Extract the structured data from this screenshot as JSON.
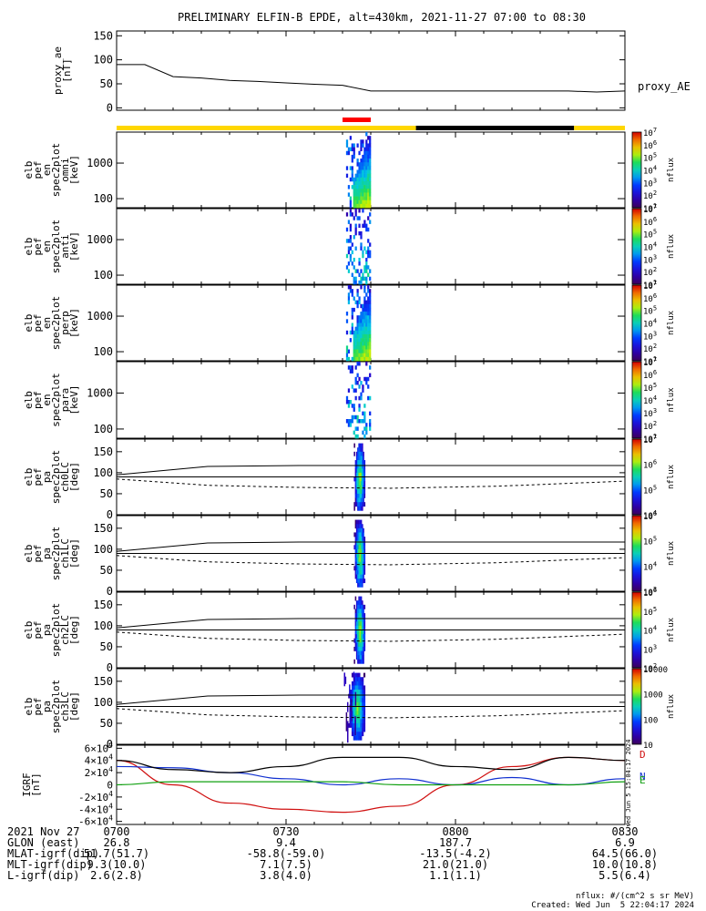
{
  "title": "PRELIMINARY ELFIN-B EPDE, alt=430km, 2021-11-27 07:00 to 08:30",
  "time_range": [
    "07:00",
    "08:30"
  ],
  "chart_data": [
    {
      "type": "line",
      "panel": "proxy_ae",
      "ylabel": "proxy_ae\n[nT]",
      "legend": "proxy_AE",
      "yticks": [
        "0",
        "50",
        "100",
        "150"
      ],
      "ylim": [
        -5,
        160
      ],
      "series": [
        {
          "name": "proxy_AE",
          "x": [
            "07:00",
            "07:05",
            "07:10",
            "07:15",
            "07:20",
            "07:25",
            "07:30",
            "07:35",
            "07:40",
            "07:45",
            "07:50",
            "07:55",
            "08:00",
            "08:05",
            "08:10",
            "08:15",
            "08:20",
            "08:25",
            "08:30"
          ],
          "values": [
            90,
            90,
            65,
            62,
            57,
            55,
            52,
            49,
            47,
            35,
            35,
            35,
            35,
            35,
            35,
            35,
            35,
            33,
            35
          ]
        }
      ]
    },
    {
      "type": "bar",
      "panel": "region_bar",
      "segments": [
        {
          "start": "07:00",
          "end": "07:40",
          "color": "#FFD700"
        },
        {
          "start": "07:40",
          "end": "07:45",
          "color": "#FF0000",
          "elevated": true
        },
        {
          "start": "07:45",
          "end": "07:53",
          "color": "#FFD700"
        },
        {
          "start": "07:53",
          "end": "08:21",
          "color": "#000000"
        },
        {
          "start": "08:21",
          "end": "08:30",
          "color": "#FFD700"
        }
      ]
    },
    {
      "type": "heatmap",
      "panel": "en_omni",
      "ylabel": "elb\npef\nen\nspec2plot\nomni\n[keV]",
      "ylog": true,
      "yticks": [
        "100",
        "1000"
      ],
      "x_range": [
        "07:40",
        "07:45"
      ],
      "colorbar": {
        "label": "nflux",
        "ticks": [
          "10^1",
          "10^2",
          "10^3",
          "10^4",
          "10^5",
          "10^6",
          "10^7"
        ]
      }
    },
    {
      "type": "heatmap",
      "panel": "en_anti",
      "ylabel": "elb\npef\nen\nspec2plot\nanti\n[keV]",
      "ylog": true,
      "yticks": [
        "100",
        "1000"
      ],
      "x_range": [
        "07:40",
        "07:45"
      ],
      "colorbar": {
        "label": "nflux",
        "ticks": [
          "10^1",
          "10^2",
          "10^3",
          "10^4",
          "10^5",
          "10^6",
          "10^7"
        ]
      }
    },
    {
      "type": "heatmap",
      "panel": "en_perp",
      "ylabel": "elb\npef\nen\nspec2plot\nperp\n[keV]",
      "ylog": true,
      "yticks": [
        "100",
        "1000"
      ],
      "x_range": [
        "07:40",
        "07:45"
      ],
      "colorbar": {
        "label": "nflux",
        "ticks": [
          "10^1",
          "10^2",
          "10^3",
          "10^4",
          "10^5",
          "10^6",
          "10^7"
        ]
      }
    },
    {
      "type": "heatmap",
      "panel": "en_para",
      "ylabel": "elb\npef\nen\nspec2plot\npara\n[keV]",
      "ylog": true,
      "yticks": [
        "100",
        "1000"
      ],
      "x_range": [
        "07:40",
        "07:45"
      ],
      "colorbar": {
        "label": "nflux",
        "ticks": [
          "10^1",
          "10^2",
          "10^3",
          "10^4",
          "10^5",
          "10^6",
          "10^7"
        ]
      }
    },
    {
      "type": "heatmap",
      "panel": "pa_ch0",
      "ylabel": "elb\npef\npa\nspec2plot\nch0LC\n[deg]",
      "yticks": [
        "0",
        "50",
        "100",
        "150"
      ],
      "ylim": [
        0,
        180
      ],
      "x_range": [
        "07:42",
        "07:44"
      ],
      "lines": {
        "solid_upper": [
          95,
          115,
          117,
          117,
          117,
          117
        ],
        "solid_90": 90,
        "dashed_lower": [
          85,
          70,
          65,
          63,
          68,
          80
        ]
      },
      "colorbar": {
        "label": "nflux",
        "ticks": [
          "10^4",
          "10^5",
          "10^6",
          "10^7"
        ]
      }
    },
    {
      "type": "heatmap",
      "panel": "pa_ch1",
      "ylabel": "elb\npef\npa\nspec2plot\nch1LC\n[deg]",
      "yticks": [
        "0",
        "50",
        "100",
        "150"
      ],
      "ylim": [
        0,
        180
      ],
      "x_range": [
        "07:42",
        "07:44"
      ],
      "lines": {
        "solid_upper": [
          95,
          115,
          117,
          117,
          117,
          117
        ],
        "solid_90": 90,
        "dashed_lower": [
          85,
          70,
          65,
          63,
          68,
          80
        ]
      },
      "colorbar": {
        "label": "nflux",
        "ticks": [
          "10^3",
          "10^4",
          "10^5",
          "10^6"
        ]
      }
    },
    {
      "type": "heatmap",
      "panel": "pa_ch2",
      "ylabel": "elb\npef\npa\nspec2plot\nch2LC\n[deg]",
      "yticks": [
        "0",
        "50",
        "100",
        "150"
      ],
      "ylim": [
        0,
        180
      ],
      "x_range": [
        "07:42",
        "07:44"
      ],
      "lines": {
        "solid_upper": [
          95,
          115,
          117,
          117,
          117,
          117
        ],
        "solid_90": 90,
        "dashed_lower": [
          85,
          70,
          65,
          63,
          68,
          80
        ]
      },
      "colorbar": {
        "label": "nflux",
        "ticks": [
          "10^2",
          "10^3",
          "10^4",
          "10^5",
          "10^6"
        ]
      }
    },
    {
      "type": "heatmap",
      "panel": "pa_ch3",
      "ylabel": "elb\npef\npa\nspec2plot\nch3LC\n[deg]",
      "yticks": [
        "0",
        "50",
        "100",
        "150"
      ],
      "ylim": [
        0,
        180
      ],
      "x_range": [
        "07:41",
        "07:44"
      ],
      "lines": {
        "solid_upper": [
          95,
          115,
          117,
          117,
          117,
          117
        ],
        "solid_90": 90,
        "dashed_lower": [
          85,
          70,
          65,
          63,
          68,
          80
        ]
      },
      "colorbar": {
        "label": "nflux",
        "ticks": [
          "10",
          "100",
          "1000",
          "10000"
        ]
      }
    },
    {
      "type": "line",
      "panel": "igrf",
      "ylabel": "IGRF\n[nT]",
      "yticks": [
        "6×10^4",
        "4×10^4",
        "2×10^4",
        "0",
        "-2×10^4",
        "-4×10^4",
        "-6×10^4"
      ],
      "ylim": [
        -65000,
        65000
      ],
      "series": [
        {
          "name": "D",
          "color": "#d01010",
          "x": [
            "07:00",
            "07:10",
            "07:20",
            "07:30",
            "07:40",
            "07:50",
            "08:00",
            "08:10",
            "08:20",
            "08:30"
          ],
          "values": [
            40000,
            0,
            -30000,
            -40000,
            -45000,
            -35000,
            0,
            30000,
            45000,
            40000
          ]
        },
        {
          "name": "N",
          "color": "#1030d0",
          "x": [
            "07:00",
            "07:10",
            "07:20",
            "07:30",
            "07:40",
            "07:50",
            "08:00",
            "08:10",
            "08:20",
            "08:30"
          ],
          "values": [
            30000,
            28000,
            20000,
            10000,
            0,
            10000,
            0,
            12000,
            0,
            10000
          ]
        },
        {
          "name": "E",
          "color": "#10a010",
          "x": [
            "07:00",
            "07:10",
            "07:20",
            "07:30",
            "07:40",
            "07:50",
            "08:00",
            "08:10",
            "08:20",
            "08:30"
          ],
          "values": [
            0,
            5000,
            5000,
            5000,
            5000,
            0,
            0,
            0,
            0,
            5000
          ]
        },
        {
          "name": "total",
          "color": "#000000",
          "x": [
            "07:00",
            "07:10",
            "07:20",
            "07:30",
            "07:40",
            "07:50",
            "08:00",
            "08:10",
            "08:20",
            "08:30"
          ],
          "values": [
            40000,
            25000,
            20000,
            30000,
            45000,
            45000,
            30000,
            25000,
            45000,
            40000
          ]
        }
      ],
      "legend_letters": [
        "D",
        "N",
        "E"
      ]
    }
  ],
  "footer": {
    "rows": [
      {
        "label": "2021 Nov 27",
        "values": [
          "0700",
          "0730",
          "0800",
          "0830"
        ]
      },
      {
        "label": "GLON (east)",
        "values": [
          "26.8",
          "9.4",
          "187.7",
          "6.9"
        ]
      },
      {
        "label": "MLAT-igrf(dip)",
        "values": [
          "51.7(51.7)",
          "-58.8(-59.0)",
          "-13.5(-4.2)",
          "64.5(66.0)"
        ]
      },
      {
        "label": "MLT-igrf(dip)",
        "values": [
          "9.3(10.0)",
          "7.1(7.5)",
          "21.0(21.0)",
          "10.0(10.8)"
        ]
      },
      {
        "label": "L-igrf(dip)",
        "values": [
          "2.6(2.8)",
          "3.8(4.0)",
          "1.1(1.1)",
          "5.5(6.4)"
        ]
      }
    ],
    "nflux_note": "nflux: #/(cm^2 s sr MeV)",
    "created": "Created: Wed Jun  5 22:04:17 2024",
    "side_stamp": "Wed Jun  5 15:04:17 2024"
  }
}
